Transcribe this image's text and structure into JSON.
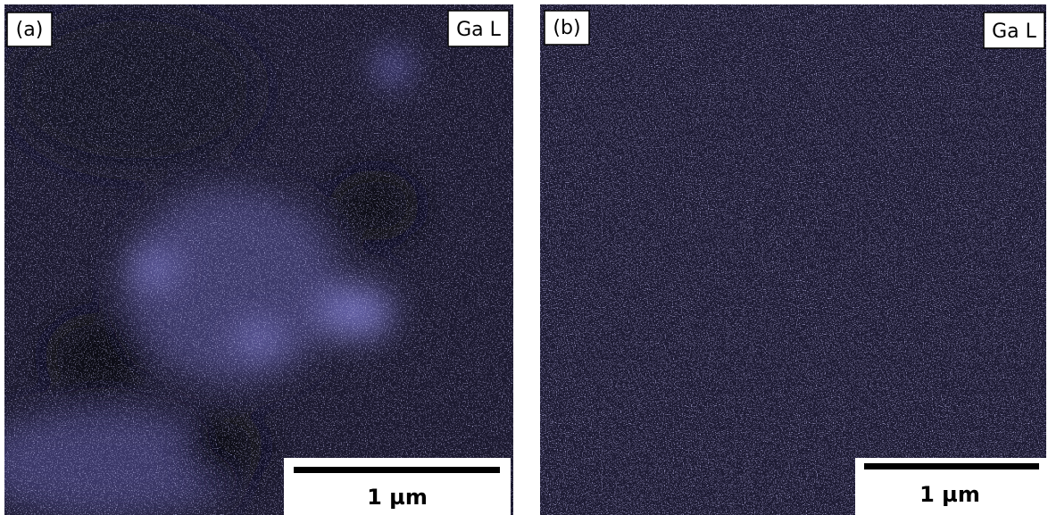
{
  "panels": [
    {
      "label": "(a)",
      "element": "Ga L",
      "scale_bar": "1 µm"
    },
    {
      "label": "(b)",
      "element": "Ga L",
      "scale_bar": "1 µm"
    }
  ]
}
